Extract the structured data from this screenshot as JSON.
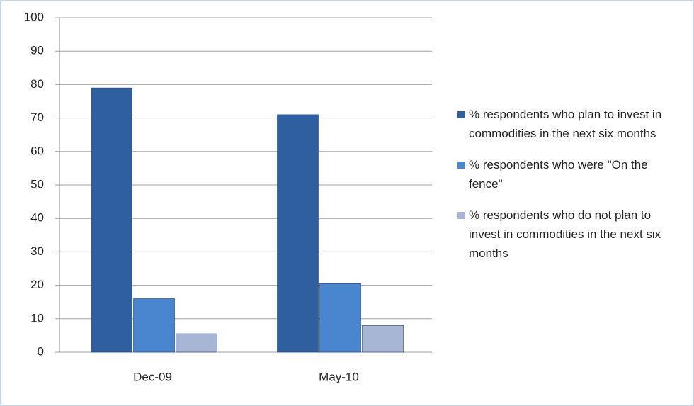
{
  "chart_data": {
    "type": "bar",
    "categories": [
      "Dec-09",
      "May-10"
    ],
    "series": [
      {
        "name": "% respondents who plan to invest in commodities in the next six months",
        "color": "#2f5f9f",
        "values": [
          79,
          71
        ]
      },
      {
        "name": "% respondents who were \"On the fence\"",
        "color": "#4a86cf",
        "values": [
          16,
          20.5
        ]
      },
      {
        "name": "% respondents who do not plan to invest in commodities in the next six months",
        "color": "#a6b6d4",
        "values": [
          5.5,
          8
        ]
      }
    ],
    "ylim": [
      0,
      100
    ],
    "yticks": [
      0,
      10,
      20,
      30,
      40,
      50,
      60,
      70,
      80,
      90,
      100
    ],
    "grid": true,
    "legend": "right"
  }
}
